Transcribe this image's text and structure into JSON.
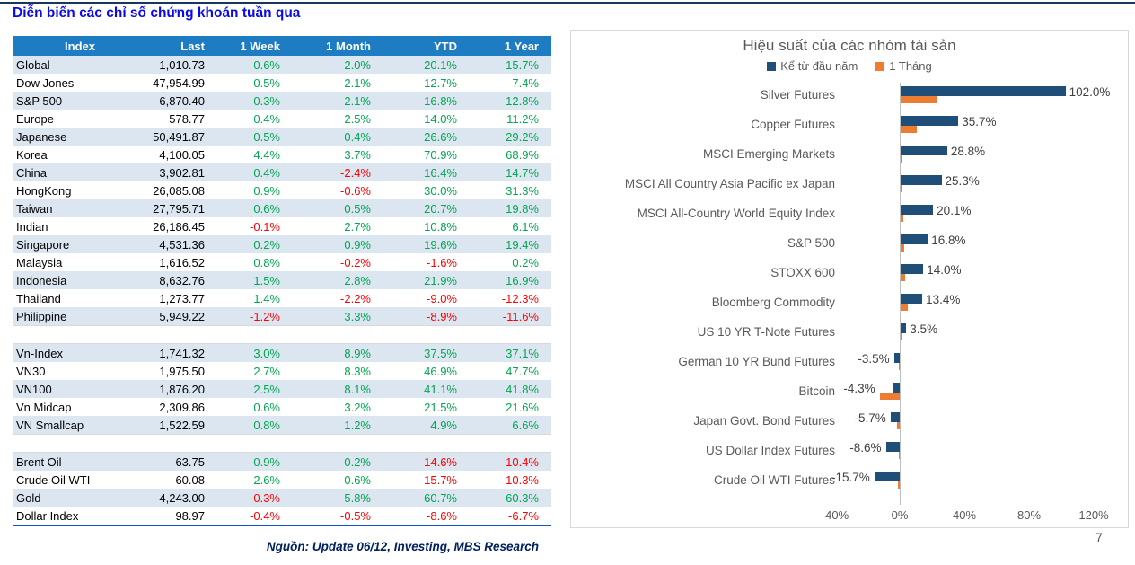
{
  "page": {
    "title": "Diễn biến các chỉ số chứng khoán tuần qua",
    "footer": "Nguồn: Update 06/12, Investing, MBS Research",
    "page_number": "7"
  },
  "table": {
    "headers": [
      "Index",
      "Last",
      "1 Week",
      "1 Month",
      "YTD",
      "1 Year"
    ],
    "rows": [
      [
        "Global",
        "1,010.73",
        "0.6%",
        "2.0%",
        "20.1%",
        "15.7%"
      ],
      [
        "Dow Jones",
        "47,954.99",
        "0.5%",
        "2.1%",
        "12.7%",
        "7.4%"
      ],
      [
        "S&P 500",
        "6,870.40",
        "0.3%",
        "2.1%",
        "16.8%",
        "12.8%"
      ],
      [
        "Europe",
        "578.77",
        "0.4%",
        "2.5%",
        "14.0%",
        "11.2%"
      ],
      [
        "Japanese",
        "50,491.87",
        "0.5%",
        "0.4%",
        "26.6%",
        "29.2%"
      ],
      [
        "Korea",
        "4,100.05",
        "4.4%",
        "3.7%",
        "70.9%",
        "68.9%"
      ],
      [
        "China",
        "3,902.81",
        "0.4%",
        "-2.4%",
        "16.4%",
        "14.7%"
      ],
      [
        "HongKong",
        "26,085.08",
        "0.9%",
        "-0.6%",
        "30.0%",
        "31.3%"
      ],
      [
        "Taiwan",
        "27,795.71",
        "0.6%",
        "0.5%",
        "20.7%",
        "19.8%"
      ],
      [
        "Indian",
        "26,186.45",
        "-0.1%",
        "2.7%",
        "10.8%",
        "6.1%"
      ],
      [
        "Singapore",
        "4,531.36",
        "0.2%",
        "0.9%",
        "19.6%",
        "19.4%"
      ],
      [
        "Malaysia",
        "1,616.52",
        "0.8%",
        "-0.2%",
        "-1.6%",
        "0.2%"
      ],
      [
        "Indonesia",
        "8,632.76",
        "1.5%",
        "2.8%",
        "21.9%",
        "16.9%"
      ],
      [
        "Thailand",
        "1,273.77",
        "1.4%",
        "-2.2%",
        "-9.0%",
        "-12.3%"
      ],
      [
        "Philippine",
        "5,949.22",
        "-1.2%",
        "3.3%",
        "-8.9%",
        "-11.6%"
      ],
      null,
      [
        "Vn-Index",
        "1,741.32",
        "3.0%",
        "8.9%",
        "37.5%",
        "37.1%"
      ],
      [
        "VN30",
        "1,975.50",
        "2.7%",
        "8.3%",
        "46.9%",
        "47.7%"
      ],
      [
        "VN100",
        "1,876.20",
        "2.5%",
        "8.1%",
        "41.1%",
        "41.8%"
      ],
      [
        "Vn Midcap",
        "2,309.86",
        "0.6%",
        "3.2%",
        "21.5%",
        "21.6%"
      ],
      [
        "VN Smallcap",
        "1,522.59",
        "0.8%",
        "1.2%",
        "4.9%",
        "6.6%"
      ],
      null,
      [
        "Brent Oil",
        "63.75",
        "0.9%",
        "0.2%",
        "-14.6%",
        "-10.4%"
      ],
      [
        "Crude Oil WTI",
        "60.08",
        "2.6%",
        "0.6%",
        "-15.7%",
        "-10.3%"
      ],
      [
        "Gold",
        "4,243.00",
        "-0.3%",
        "5.8%",
        "60.7%",
        "60.3%"
      ],
      [
        "Dollar Index",
        "98.97",
        "-0.4%",
        "-0.5%",
        "-8.6%",
        "-6.7%"
      ]
    ]
  },
  "chart_data": {
    "type": "bar",
    "orientation": "horizontal",
    "title": "Hiệu suất của các nhóm tài sản",
    "legend": [
      "Kể từ đầu năm",
      "1 Tháng"
    ],
    "categories": [
      "Silver Futures",
      "Copper Futures",
      "MSCI Emerging Markets",
      "MSCI All Country Asia Pacific ex Japan",
      "MSCI All-Country World Equity Index",
      "S&P 500",
      "STOXX 600",
      "Bloomberg Commodity",
      "US 10 YR T-Note Futures",
      "German 10 YR Bund Futures",
      "Bitcoin",
      "Japan Govt. Bond Futures",
      "US Dollar Index Futures",
      "Crude Oil WTI Futures"
    ],
    "series": [
      {
        "name": "Kể từ đầu năm",
        "color": "#1F4E79",
        "values": [
          102.0,
          35.7,
          28.8,
          25.3,
          20.1,
          16.8,
          14.0,
          13.4,
          3.5,
          -3.5,
          -4.3,
          -5.7,
          -8.6,
          -15.7
        ],
        "labels": [
          "102.0%",
          "35.7%",
          "28.8%",
          "25.3%",
          "20.1%",
          "16.8%",
          "14.0%",
          "13.4%",
          "3.5%",
          "-3.5%",
          "-4.3%",
          "-5.7%",
          "-8.6%",
          "-15.7%"
        ]
      },
      {
        "name": "1 Tháng",
        "color": "#ED7D31",
        "values": [
          22.5,
          10.0,
          0.6,
          0.3,
          1.9,
          2.2,
          2.5,
          4.5,
          0.5,
          -0.6,
          -12.4,
          -1.9,
          -0.8,
          -1.2
        ],
        "note": "values estimated from bar lengths; not labeled in chart"
      }
    ],
    "xlim": [
      -40,
      120
    ],
    "xticks": [
      "-40%",
      "0%",
      "40%",
      "80%",
      "120%"
    ],
    "xtick_values": [
      -40,
      0,
      40,
      80,
      120
    ],
    "grid": "none",
    "legend_position": "top"
  }
}
